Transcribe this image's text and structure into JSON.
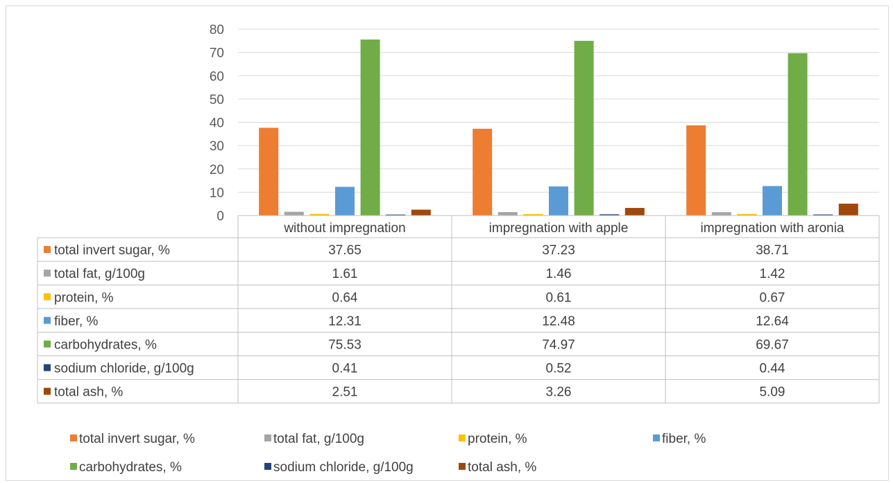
{
  "chart_data": {
    "type": "bar",
    "title": "",
    "xlabel": "",
    "ylabel": "",
    "ylim": [
      0,
      80
    ],
    "yticks": [
      0,
      10,
      20,
      30,
      40,
      50,
      60,
      70,
      80
    ],
    "grid": true,
    "legend_position": "bottom",
    "data_table": true,
    "categories": [
      "without impregnation",
      "impregnation with apple",
      "impregnation with aronia"
    ],
    "series": [
      {
        "name": "total invert sugar, %",
        "color": "#ED7D31",
        "values": [
          37.65,
          37.23,
          38.71
        ],
        "labels": [
          "37.65",
          "37.23",
          "38.71"
        ]
      },
      {
        "name": "total fat, g/100g",
        "color": "#A5A5A5",
        "values": [
          1.61,
          1.46,
          1.42
        ],
        "labels": [
          "1.61",
          "1.46",
          "1.42"
        ]
      },
      {
        "name": "protein, %",
        "color": "#FFC000",
        "values": [
          0.64,
          0.61,
          0.67
        ],
        "labels": [
          "0.64",
          "0.61",
          "0.67"
        ]
      },
      {
        "name": "fiber, %",
        "color": "#5B9BD5",
        "values": [
          12.31,
          12.48,
          12.64
        ],
        "labels": [
          "12.31",
          "12.48",
          "12.64"
        ]
      },
      {
        "name": "carbohydrates, %",
        "color": "#70AD47",
        "values": [
          75.53,
          74.97,
          69.67
        ],
        "labels": [
          "75.53",
          "74.97",
          "69.67"
        ]
      },
      {
        "name": "sodium chloride, g/100g",
        "color": "#264478",
        "values": [
          0.41,
          0.52,
          0.44
        ],
        "labels": [
          "0.41",
          "0.52",
          "0.44"
        ]
      },
      {
        "name": "total ash, %",
        "color": "#9E480E",
        "values": [
          2.51,
          3.26,
          5.09
        ],
        "labels": [
          "2.51",
          "3.26",
          "5.09"
        ]
      }
    ]
  }
}
